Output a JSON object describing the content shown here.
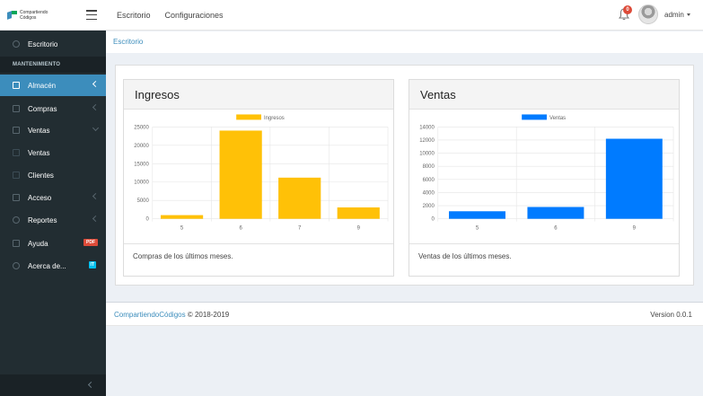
{
  "header": {
    "logo_text_line1": "Compartiendo",
    "logo_text_line2": "Códigos",
    "nav": [
      "Escritorio",
      "Configuraciones"
    ],
    "notification_count": "0",
    "user_name": "admin"
  },
  "sidebar": {
    "section_header": "MANTENIMIENTO",
    "items": [
      {
        "label": "Escritorio",
        "icon": "dashboard-icon"
      },
      {
        "label": "Almacén",
        "icon": "laptop-icon"
      },
      {
        "label": "Compras",
        "icon": "th-icon"
      },
      {
        "label": "Ventas",
        "icon": "cart-icon"
      },
      {
        "label": "Ventas",
        "icon": "cart-icon"
      },
      {
        "label": "Clientes",
        "icon": "clients-icon"
      },
      {
        "label": "Acceso",
        "icon": "folder-icon"
      },
      {
        "label": "Reportes",
        "icon": "bar-chart-icon"
      },
      {
        "label": "Ayuda",
        "icon": "plus-square-icon",
        "badge": "PDF"
      },
      {
        "label": "Acerca de...",
        "icon": "info-circle-icon",
        "badge": "IT"
      }
    ]
  },
  "breadcrumb": "Escritorio",
  "cards": [
    {
      "title": "Ingresos",
      "footer": "Compras de los últimos meses."
    },
    {
      "title": "Ventas",
      "footer": "Ventas de los últimos meses."
    }
  ],
  "chart_data": [
    {
      "type": "bar",
      "categories": [
        "5",
        "6",
        "7",
        "9"
      ],
      "series": [
        {
          "name": "Ingresos",
          "values": [
            1000,
            24000,
            11200,
            3100
          ],
          "color": "#ffc107"
        }
      ],
      "ylim": [
        0,
        25000
      ],
      "yticks": [
        0,
        5000,
        10000,
        15000,
        20000,
        25000
      ],
      "grid": true,
      "legend_position": "top-center"
    },
    {
      "type": "bar",
      "categories": [
        "5",
        "6",
        "9"
      ],
      "series": [
        {
          "name": "Ventas",
          "values": [
            1150,
            1800,
            12200
          ],
          "color": "#007bff"
        }
      ],
      "ylim": [
        0,
        14000
      ],
      "yticks": [
        0,
        2000,
        4000,
        6000,
        8000,
        10000,
        12000,
        14000
      ],
      "grid": true,
      "legend_position": "top-center"
    }
  ],
  "footer": {
    "brand": "CompartiendoCódigos",
    "copyright": "© 2018-2019",
    "version": "Version 0.0.1"
  },
  "colors": {
    "sidebar_bg": "#222d32",
    "active_blue": "#3c8dbc",
    "badge_red": "#dd4b39",
    "badge_cyan": "#00c0ef",
    "bar_yellow": "#ffc107",
    "bar_blue": "#007bff"
  }
}
